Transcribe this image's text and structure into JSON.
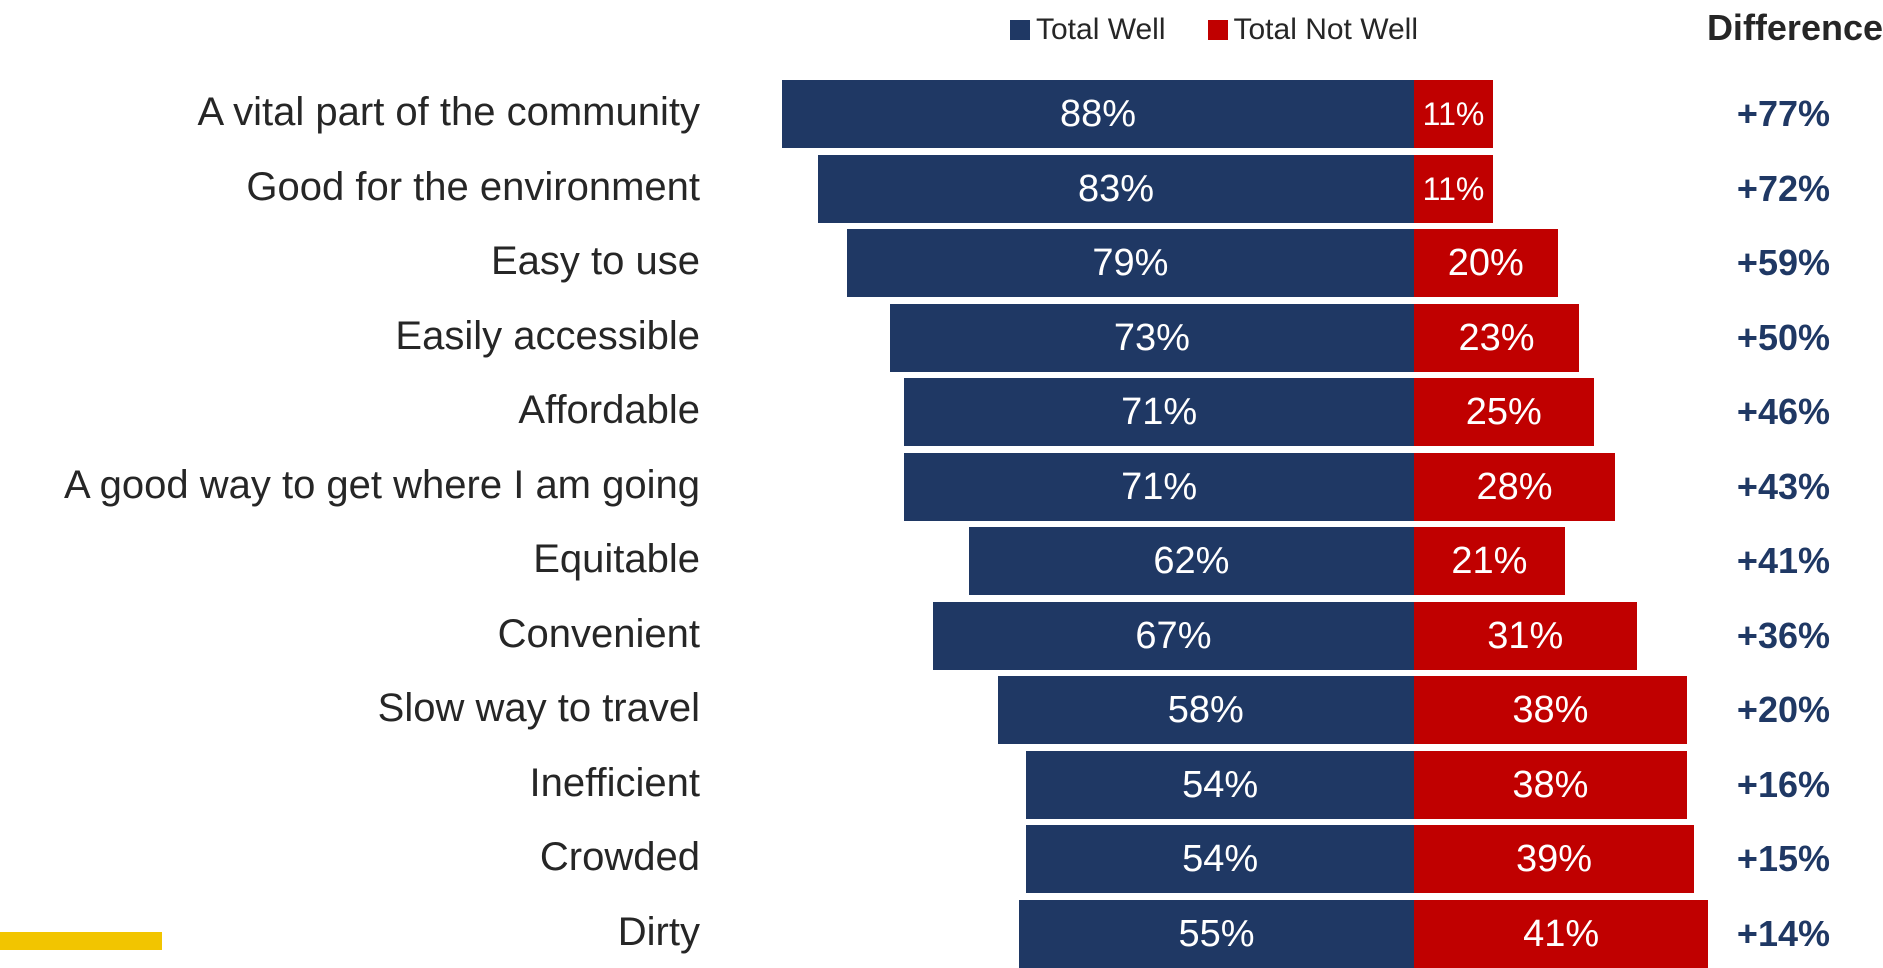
{
  "legend": {
    "well_label": "Total Well",
    "notwell_label": "Total Not Well",
    "well_color": "#1F3864",
    "notwell_color": "#C00000"
  },
  "difference_header": "Difference",
  "chart_data": {
    "type": "bar",
    "orientation": "horizontal-diverging",
    "categories": [
      "A vital part of the community",
      "Good for the environment",
      "Easy to use",
      "Easily accessible",
      "Affordable",
      "A good way to get where I am going",
      "Equitable",
      "Convenient",
      "Slow way to travel",
      "Inefficient",
      "Crowded",
      "Dirty"
    ],
    "series": [
      {
        "name": "Total Well",
        "values": [
          88,
          83,
          79,
          73,
          71,
          71,
          62,
          67,
          58,
          54,
          54,
          55
        ],
        "labels": [
          "88%",
          "83%",
          "79%",
          "73%",
          "71%",
          "71%",
          "62%",
          "67%",
          "58%",
          "54%",
          "54%",
          "55%"
        ],
        "color": "#1F3864"
      },
      {
        "name": "Total Not Well",
        "values": [
          11,
          11,
          20,
          23,
          25,
          28,
          21,
          31,
          38,
          38,
          39,
          41
        ],
        "labels": [
          "11%",
          "11%",
          "20%",
          "23%",
          "25%",
          "28%",
          "21%",
          "31%",
          "38%",
          "38%",
          "39%",
          "41%"
        ],
        "color": "#C00000"
      }
    ],
    "difference": [
      "+77%",
      "+72%",
      "+59%",
      "+50%",
      "+46%",
      "+43%",
      "+41%",
      "+36%",
      "+20%",
      "+16%",
      "+15%",
      "+14%"
    ],
    "legend_position": "top",
    "grid": false
  }
}
